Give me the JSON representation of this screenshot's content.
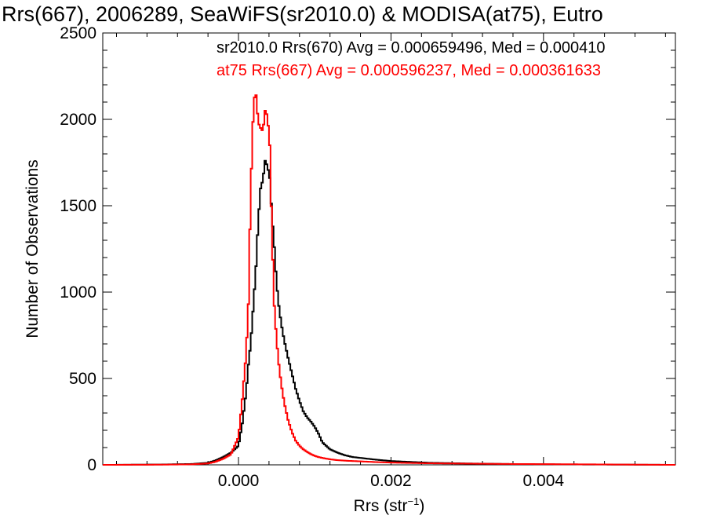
{
  "chart_data": {
    "type": "histogram",
    "title": "Rrs(667), 2006289, SeaWiFS(sr2010.0) & MODISA(at75), Eutro",
    "xlabel": "Rrs (str",
    "xlabel_sup": "−1",
    "xlabel_end": ")",
    "ylabel": "Number of Observations",
    "xlim": [
      -0.00178,
      0.00573
    ],
    "ylim": [
      0,
      2500
    ],
    "x_ticks": [
      0.0,
      0.002,
      0.004
    ],
    "x_tick_labels": [
      "0.000",
      "0.002",
      "0.004"
    ],
    "y_ticks": [
      0,
      500,
      1000,
      1500,
      2000,
      2500
    ],
    "y_tick_labels": [
      "0",
      "500",
      "1000",
      "1500",
      "2000",
      "2500"
    ],
    "legend": [
      "sr2010.0 Rrs(670) Avg = 0.000659496, Med = 0.000410",
      "at75 Rrs(667) Avg = 0.000596237, Med = 0.000361633"
    ],
    "bin_width": 2e-05,
    "series": [
      {
        "name": "sr2010.0 Rrs(670)",
        "color": "#000000",
        "points": [
          [
            -0.0017,
            0
          ],
          [
            -0.001,
            2
          ],
          [
            -0.0006,
            5
          ],
          [
            -0.0004,
            12
          ],
          [
            -0.0003,
            25
          ],
          [
            -0.0002,
            45
          ],
          [
            -0.0001,
            70
          ],
          [
            0.0,
            110
          ],
          [
            5e-05,
            240
          ],
          [
            0.0001,
            420
          ],
          [
            0.00013,
            580
          ],
          [
            0.00016,
            700
          ],
          [
            0.0002,
            950
          ],
          [
            0.00023,
            1150
          ],
          [
            0.00026,
            1420
          ],
          [
            0.00029,
            1600
          ],
          [
            0.00032,
            1650
          ],
          [
            0.00035,
            1760
          ],
          [
            0.00038,
            1730
          ],
          [
            0.00041,
            1660
          ],
          [
            0.00044,
            1440
          ],
          [
            0.00047,
            1260
          ],
          [
            0.0005,
            1050
          ],
          [
            0.00053,
            920
          ],
          [
            0.00056,
            820
          ],
          [
            0.0006,
            720
          ],
          [
            0.00065,
            620
          ],
          [
            0.0007,
            530
          ],
          [
            0.00075,
            440
          ],
          [
            0.0008,
            370
          ],
          [
            0.00085,
            310
          ],
          [
            0.0009,
            275
          ],
          [
            0.00095,
            250
          ],
          [
            0.001,
            220
          ],
          [
            0.00105,
            180
          ],
          [
            0.0011,
            130
          ],
          [
            0.0012,
            90
          ],
          [
            0.0013,
            70
          ],
          [
            0.0014,
            55
          ],
          [
            0.0015,
            45
          ],
          [
            0.0016,
            40
          ],
          [
            0.0018,
            30
          ],
          [
            0.002,
            22
          ],
          [
            0.0022,
            18
          ],
          [
            0.0025,
            12
          ],
          [
            0.003,
            8
          ],
          [
            0.0035,
            5
          ],
          [
            0.004,
            3
          ],
          [
            0.0045,
            2
          ],
          [
            0.0057,
            0
          ]
        ]
      },
      {
        "name": "at75 Rrs(667)",
        "color": "#ff0000",
        "points": [
          [
            -0.0017,
            0
          ],
          [
            -0.001,
            1
          ],
          [
            -0.0006,
            3
          ],
          [
            -0.0004,
            8
          ],
          [
            -0.0003,
            18
          ],
          [
            -0.0002,
            35
          ],
          [
            -0.0001,
            60
          ],
          [
            0.0,
            160
          ],
          [
            5e-05,
            380
          ],
          [
            0.0001,
            640
          ],
          [
            0.00013,
            930
          ],
          [
            0.00016,
            1580
          ],
          [
            0.0002,
            2120
          ],
          [
            0.00023,
            2140
          ],
          [
            0.00026,
            1980
          ],
          [
            0.00029,
            1950
          ],
          [
            0.00032,
            1930
          ],
          [
            0.00035,
            2050
          ],
          [
            0.00038,
            2020
          ],
          [
            0.00041,
            1850
          ],
          [
            0.00044,
            1320
          ],
          [
            0.00047,
            920
          ],
          [
            0.0005,
            720
          ],
          [
            0.00053,
            580
          ],
          [
            0.00056,
            470
          ],
          [
            0.0006,
            360
          ],
          [
            0.00065,
            260
          ],
          [
            0.0007,
            190
          ],
          [
            0.00075,
            140
          ],
          [
            0.0008,
            110
          ],
          [
            0.00085,
            90
          ],
          [
            0.0009,
            75
          ],
          [
            0.00095,
            62
          ],
          [
            0.001,
            52
          ],
          [
            0.00105,
            45
          ],
          [
            0.0011,
            40
          ],
          [
            0.0012,
            32
          ],
          [
            0.0013,
            27
          ],
          [
            0.0014,
            24
          ],
          [
            0.0015,
            22
          ],
          [
            0.0016,
            20
          ],
          [
            0.0018,
            16
          ],
          [
            0.002,
            13
          ],
          [
            0.0022,
            11
          ],
          [
            0.0025,
            9
          ],
          [
            0.003,
            7
          ],
          [
            0.0035,
            5
          ],
          [
            0.004,
            4
          ],
          [
            0.0045,
            3
          ],
          [
            0.0057,
            0
          ]
        ]
      }
    ]
  }
}
